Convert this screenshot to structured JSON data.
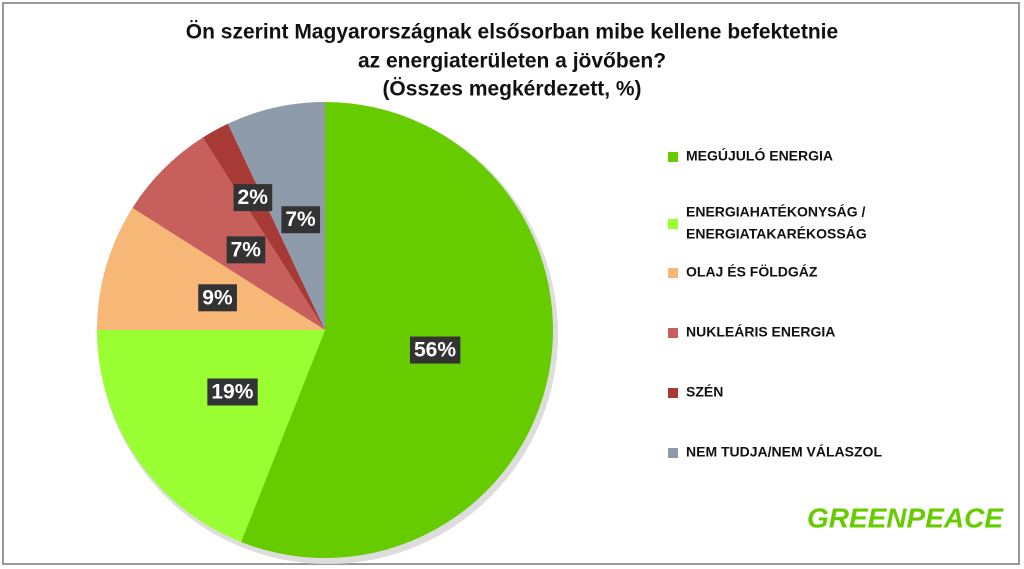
{
  "chart_data": {
    "type": "pie",
    "title": [
      "Ön szerint Magyarországnak elsősorban mibe kellene befektetnie",
      "az energiaterületen a jövőben?",
      "(Összes megkérdezett, %)"
    ],
    "categories": [
      "MEGÚJULÓ ENERGIA",
      [
        "ENERGIAHATÉKONYSÁG /",
        "ENERGIATAKARÉKOSSÁG"
      ],
      "OLAJ ÉS FÖLDGÁZ",
      "NUKLEÁRIS ENERGIA",
      "SZÉN",
      "NEM TUDJA/NEM VÁLASZOL"
    ],
    "values": [
      56,
      19,
      9,
      7,
      2,
      7
    ],
    "value_labels": [
      "56%",
      "19%",
      "9%",
      "7%",
      "2%",
      "7%"
    ],
    "colors": [
      "#66cc00",
      "#99ff33",
      "#f7b877",
      "#c75f5c",
      "#a83a36",
      "#8e9bab"
    ],
    "legend": "right"
  },
  "logo": "GREENPEACE"
}
